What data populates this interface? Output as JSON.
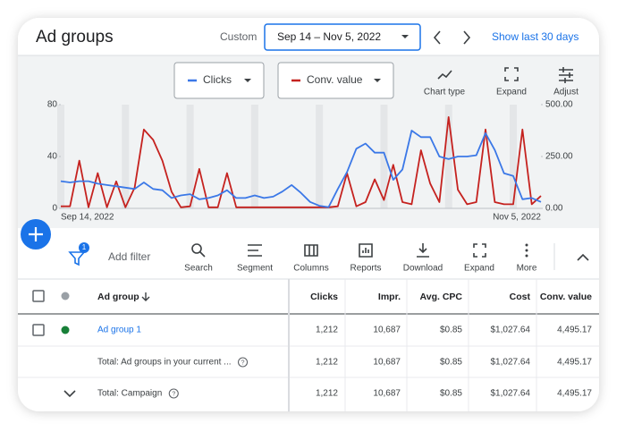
{
  "header": {
    "title": "Ad groups",
    "range_label": "Custom",
    "date_range": "Sep 14 – Nov 5, 2022",
    "show_last": "Show last 30 days"
  },
  "chart_tools": [
    "Chart type",
    "Expand",
    "Adjust"
  ],
  "chart_data": {
    "type": "line",
    "categories": [
      "Sep 14, 2022",
      null,
      null,
      null,
      null,
      null,
      null,
      null,
      null,
      null,
      null,
      null,
      null,
      null,
      null,
      null,
      null,
      null,
      null,
      null,
      null,
      null,
      null,
      null,
      null,
      null,
      null,
      null,
      null,
      null,
      null,
      null,
      null,
      null,
      null,
      null,
      null,
      null,
      null,
      null,
      null,
      null,
      null,
      null,
      null,
      null,
      null,
      null,
      null,
      null,
      null,
      null,
      "Nov 5, 2022"
    ],
    "series": [
      {
        "name": "Clicks",
        "color": "#3b78e7",
        "values": [
          21,
          20,
          21,
          21,
          19,
          18,
          17,
          16,
          15,
          20,
          15,
          14,
          8,
          10,
          11,
          7,
          8,
          10,
          14,
          8,
          8,
          10,
          8,
          9,
          13,
          18,
          12,
          5,
          2,
          1,
          15,
          28,
          46,
          50,
          43,
          43,
          22,
          30,
          60,
          55,
          55,
          40,
          38,
          40,
          40,
          41,
          58,
          45,
          27,
          25,
          7,
          8,
          5
        ]
      },
      {
        "name": "Conv. value",
        "color": "#c5221f",
        "axis": "y2",
        "values": [
          10,
          10,
          230,
          5,
          170,
          5,
          130,
          5,
          100,
          380,
          330,
          230,
          80,
          5,
          10,
          190,
          5,
          5,
          170,
          5,
          5,
          5,
          5,
          5,
          5,
          5,
          5,
          5,
          5,
          5,
          10,
          170,
          10,
          30,
          140,
          40,
          210,
          30,
          20,
          280,
          120,
          30,
          440,
          90,
          20,
          30,
          380,
          30,
          20,
          20,
          380,
          20,
          60
        ]
      }
    ],
    "ylim": [
      0,
      80
    ],
    "yticks": [
      0,
      40,
      80
    ],
    "y2lim": [
      0,
      500
    ],
    "y2ticks": [
      {
        "value": 0,
        "label": "0.00"
      },
      {
        "value": 250,
        "label": "250.00"
      },
      {
        "value": 500,
        "label": "500.00"
      }
    ],
    "grid": false
  },
  "toolbar": {
    "filter_count": "1",
    "add_filter": "Add filter",
    "tools": [
      "Search",
      "Segment",
      "Columns",
      "Reports",
      "Download",
      "Expand",
      "More"
    ]
  },
  "table": {
    "headers": [
      "Ad group",
      "Clicks",
      "Impr.",
      "Avg. CPC",
      "Cost",
      "Conv. value"
    ],
    "rows": [
      [
        "Ad group 1",
        "1,212",
        "10,687",
        "$0.85",
        "$1,027.64",
        "4,495.17"
      ],
      [
        "Total: Ad groups in your current ...",
        "1,212",
        "10,687",
        "$0.85",
        "$1,027.64",
        "4,495.17"
      ],
      [
        "Total: Campaign",
        "1,212",
        "10,687",
        "$0.85",
        "$1,027.64",
        "4,495.17"
      ]
    ]
  }
}
